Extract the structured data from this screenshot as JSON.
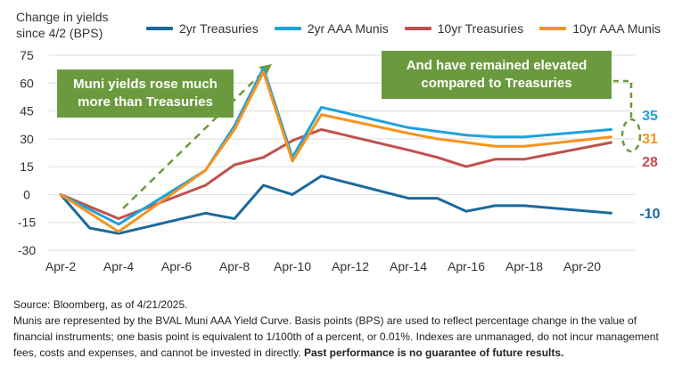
{
  "chart_data": {
    "type": "line",
    "ylabel_lines": [
      "Change in yields",
      "since 4/2 (BPS)"
    ],
    "x": [
      "Apr-2",
      "Apr-3",
      "Apr-4",
      "Apr-7",
      "Apr-8",
      "Apr-9",
      "Apr-10",
      "Apr-11",
      "Apr-14",
      "Apr-15",
      "Apr-16",
      "Apr-17",
      "Apr-18",
      "Apr-21"
    ],
    "xtick_labels": [
      "Apr-2",
      "Apr-4",
      "Apr-6",
      "Apr-8",
      "Apr-10",
      "Apr-12",
      "Apr-14",
      "Apr-16",
      "Apr-18",
      "Apr-20"
    ],
    "yticks": [
      75,
      60,
      45,
      30,
      15,
      0,
      -15,
      -30
    ],
    "ylim": [
      -30,
      75
    ],
    "grid": "horizontal",
    "legend_position": "top",
    "series": [
      {
        "name": "2yr Treasuries",
        "color": "#1a6a9c",
        "end_label": "-10",
        "points": [
          [
            "Apr-2",
            0
          ],
          [
            "Apr-3",
            -18
          ],
          [
            "Apr-4",
            -21
          ],
          [
            "Apr-7",
            -10
          ],
          [
            "Apr-8",
            -13
          ],
          [
            "Apr-9",
            5
          ],
          [
            "Apr-10",
            0
          ],
          [
            "Apr-11",
            10
          ],
          [
            "Apr-14",
            -2
          ],
          [
            "Apr-15",
            -2
          ],
          [
            "Apr-16",
            -9
          ],
          [
            "Apr-17",
            -6
          ],
          [
            "Apr-18",
            -6
          ],
          [
            "Apr-21",
            -10
          ]
        ]
      },
      {
        "name": "2yr AAA Munis",
        "color": "#1ea2dc",
        "end_label": "35",
        "points": [
          [
            "Apr-2",
            0
          ],
          [
            "Apr-4",
            -16
          ],
          [
            "Apr-7",
            13
          ],
          [
            "Apr-8",
            37
          ],
          [
            "Apr-9",
            68
          ],
          [
            "Apr-10",
            20
          ],
          [
            "Apr-11",
            47
          ],
          [
            "Apr-14",
            36
          ],
          [
            "Apr-15",
            34
          ],
          [
            "Apr-16",
            32
          ],
          [
            "Apr-17",
            31
          ],
          [
            "Apr-18",
            31
          ],
          [
            "Apr-21",
            35
          ]
        ]
      },
      {
        "name": "10yr Treasuries",
        "color": "#c0504d",
        "end_label": "28",
        "points": [
          [
            "Apr-2",
            0
          ],
          [
            "Apr-4",
            -13
          ],
          [
            "Apr-7",
            5
          ],
          [
            "Apr-8",
            16
          ],
          [
            "Apr-9",
            20
          ],
          [
            "Apr-10",
            29
          ],
          [
            "Apr-11",
            35
          ],
          [
            "Apr-14",
            24
          ],
          [
            "Apr-15",
            20
          ],
          [
            "Apr-16",
            15
          ],
          [
            "Apr-17",
            19
          ],
          [
            "Apr-18",
            19
          ],
          [
            "Apr-21",
            28
          ]
        ]
      },
      {
        "name": "10yr AAA Munis",
        "color": "#f7941d",
        "end_label": "31",
        "points": [
          [
            "Apr-2",
            0
          ],
          [
            "Apr-4",
            -20
          ],
          [
            "Apr-7",
            13
          ],
          [
            "Apr-8",
            35
          ],
          [
            "Apr-9",
            66
          ],
          [
            "Apr-10",
            18
          ],
          [
            "Apr-11",
            43
          ],
          [
            "Apr-14",
            33
          ],
          [
            "Apr-15",
            30
          ],
          [
            "Apr-16",
            28
          ],
          [
            "Apr-17",
            26
          ],
          [
            "Apr-18",
            26
          ],
          [
            "Apr-21",
            31
          ]
        ]
      }
    ],
    "annotations": [
      {
        "text": "Muni yields rose much more than Treasuries"
      },
      {
        "text": "And have remained elevated compared to Treasuries"
      }
    ]
  },
  "callouts": {
    "left": {
      "line1": "Muni yields rose much",
      "line2": "more than Treasuries"
    },
    "right": {
      "line1": "And have remained elevated",
      "line2": "compared to Treasuries"
    },
    "color": "#6b9a3e"
  },
  "footer": {
    "source": "Source: Bloomberg, as of 4/21/2025.",
    "note": "Munis are represented by the BVAL Muni AAA Yield Curve. Basis points (BPS) are used to reflect percentage change in the value of financial instruments; one basis point is equivalent to 1/100th of a percent, or 0.01%. Indexes are unmanaged, do not incur management fees, costs and expenses, and cannot be invested in directly.",
    "disclaimer": "Past performance is no guarantee of future results."
  }
}
